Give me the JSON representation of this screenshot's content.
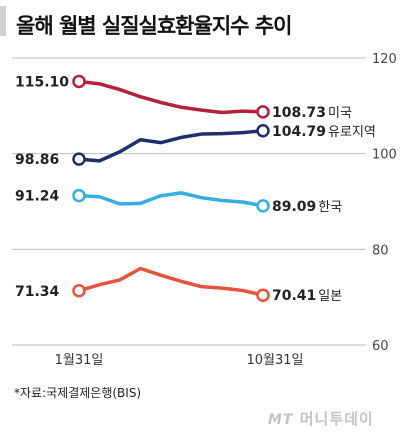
{
  "title": "올해 월별 실질실효환율지수 추이",
  "source": "*자료:국제결제은행(BIS)",
  "watermark": {
    "brand": "MT",
    "name": "머니투데이"
  },
  "chart_data": {
    "type": "line",
    "title": "올해 월별 실질실효환율지수 추이",
    "xlabel": "",
    "ylabel": "",
    "ylim": [
      60,
      120
    ],
    "yticks": [
      120,
      100,
      80,
      60
    ],
    "x_tick_labels": [
      "1월31일",
      "10월31일"
    ],
    "grid": true,
    "legend": "inline-labels-right",
    "series": [
      {
        "name": "미국",
        "color": "#b5213a",
        "values": [
          115.1,
          114.6,
          113.4,
          111.9,
          110.7,
          109.7,
          109.1,
          108.6,
          108.9,
          108.73
        ],
        "start_label": "115.10",
        "end_label": "108.73"
      },
      {
        "name": "유로지역",
        "color": "#1f2e6e",
        "values": [
          98.86,
          98.5,
          100.4,
          102.9,
          102.3,
          103.4,
          104.1,
          104.2,
          104.4,
          104.79
        ],
        "start_label": "98.86",
        "end_label": "104.79"
      },
      {
        "name": "한국",
        "color": "#37aee0",
        "values": [
          91.24,
          91.0,
          89.5,
          89.6,
          91.2,
          91.8,
          90.8,
          90.2,
          89.9,
          89.09
        ],
        "start_label": "91.24",
        "end_label": "89.09"
      },
      {
        "name": "일본",
        "color": "#e5533d",
        "values": [
          71.34,
          72.6,
          73.6,
          76.0,
          74.6,
          73.3,
          72.2,
          71.9,
          71.4,
          70.41
        ],
        "start_label": "71.34",
        "end_label": "70.41"
      }
    ]
  }
}
